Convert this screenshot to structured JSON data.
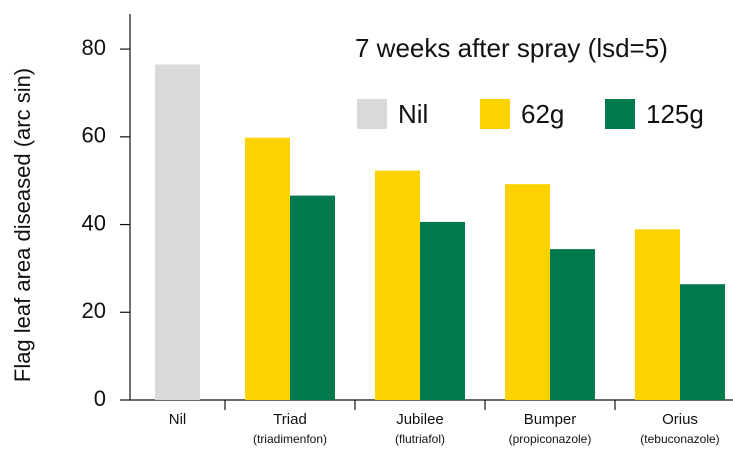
{
  "chart_data": {
    "type": "bar",
    "title": "7 weeks after spray (lsd=5)",
    "y_label": "Flag leaf area diseased (arc sin)",
    "categories": [
      "Nil",
      "Triad",
      "Jubilee",
      "Bumper",
      "Orius"
    ],
    "category_notes": [
      null,
      "(triadimenfon)",
      "(flutriafol)",
      "(propiconazole)",
      "(tebuconazole)"
    ],
    "series": [
      {
        "name": "Nil",
        "color": "#d9d9db",
        "values": [
          76.5,
          null,
          null,
          null,
          null
        ]
      },
      {
        "name": "62g",
        "color": "#fcd300",
        "values": [
          null,
          59.8,
          52.3,
          49.2,
          38.9
        ]
      },
      {
        "name": "125g",
        "color": "#007a4d",
        "values": [
          null,
          46.6,
          40.6,
          34.4,
          26.4
        ]
      }
    ],
    "ylim": [
      0,
      88
    ],
    "yticks": [
      0,
      20,
      40,
      60,
      80
    ],
    "grid": false,
    "legend": "top-right"
  }
}
